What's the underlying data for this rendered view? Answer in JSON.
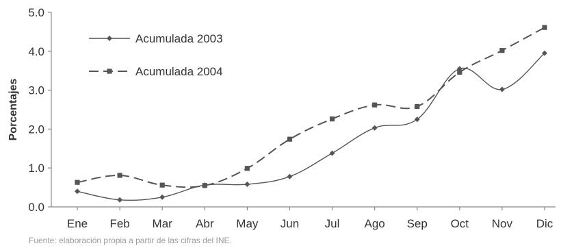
{
  "chart_data": {
    "type": "line",
    "categories": [
      "Ene",
      "Feb",
      "Mar",
      "Abr",
      "May",
      "Jun",
      "Jul",
      "Ago",
      "Sep",
      "Oct",
      "Nov",
      "Dic"
    ],
    "series": [
      {
        "name": "Acumulada 2003",
        "values": [
          0.4,
          0.18,
          0.25,
          0.56,
          0.58,
          0.78,
          1.38,
          2.03,
          2.25,
          3.55,
          3.02,
          3.95
        ],
        "style": "solid",
        "marker": "diamond",
        "color": "#555555"
      },
      {
        "name": "Acumulada 2004",
        "values": [
          0.63,
          0.81,
          0.56,
          0.55,
          0.99,
          1.74,
          2.26,
          2.62,
          2.58,
          3.46,
          4.02,
          4.61
        ],
        "style": "dashed",
        "marker": "square",
        "color": "#555555"
      }
    ],
    "ylabel": "Porcentajes",
    "xlabel": "",
    "ylim": [
      0,
      5
    ],
    "yticks": [
      "0.0",
      "1.0",
      "2.0",
      "3.0",
      "4.0",
      "5.0"
    ],
    "grid": false,
    "legend_position": "top-left"
  },
  "source_note": "Fuente: elaboración propia a partir de las cifras del INE."
}
